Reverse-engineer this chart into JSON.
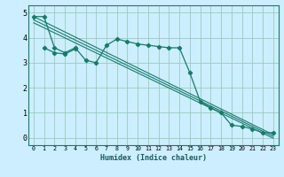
{
  "title": "",
  "xlabel": "Humidex (Indice chaleur)",
  "ylabel": "",
  "bg_color": "#cceeff",
  "grid_color": "#99ccbb",
  "line_color": "#1a7a6a",
  "xlim": [
    -0.5,
    23.5
  ],
  "ylim": [
    -0.3,
    5.3
  ],
  "xticks": [
    0,
    1,
    2,
    3,
    4,
    5,
    6,
    7,
    8,
    9,
    10,
    11,
    12,
    13,
    14,
    15,
    16,
    17,
    18,
    19,
    20,
    21,
    22,
    23
  ],
  "yticks": [
    0,
    1,
    2,
    3,
    4,
    5
  ],
  "main_line_x": [
    0,
    1,
    2,
    3,
    4,
    5,
    6,
    7,
    8,
    9,
    10,
    11,
    12,
    13,
    14,
    15,
    16,
    17,
    18,
    19,
    20,
    21,
    22,
    23
  ],
  "main_line_y": [
    4.85,
    4.85,
    3.6,
    3.4,
    3.6,
    3.1,
    3.0,
    3.7,
    3.95,
    3.85,
    3.75,
    3.7,
    3.65,
    3.6,
    3.6,
    2.6,
    1.45,
    1.2,
    1.0,
    0.5,
    0.45,
    0.35,
    0.2,
    0.2
  ],
  "second_line_x": [
    1,
    2,
    3,
    4
  ],
  "second_line_y": [
    3.6,
    3.4,
    3.35,
    3.55
  ],
  "regression_lines": [
    {
      "x": [
        0,
        23
      ],
      "y": [
        4.85,
        0.12
      ]
    },
    {
      "x": [
        0,
        23
      ],
      "y": [
        4.72,
        0.05
      ]
    },
    {
      "x": [
        0,
        23
      ],
      "y": [
        4.6,
        -0.02
      ]
    }
  ],
  "xlabel_fontsize": 6.0,
  "xtick_fontsize": 4.8,
  "ytick_fontsize": 6.0
}
